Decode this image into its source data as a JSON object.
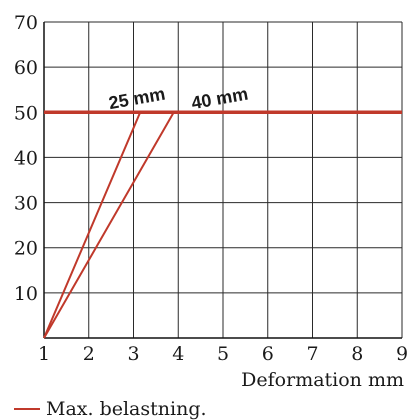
{
  "chart_data": {
    "type": "line",
    "title": "",
    "xlabel": "Deformation mm",
    "ylabel": "",
    "xlim": [
      1,
      9
    ],
    "ylim": [
      0,
      70
    ],
    "xticks": [
      "1",
      "2",
      "3",
      "4",
      "5",
      "6",
      "7",
      "8",
      "9"
    ],
    "yticks": [
      "10",
      "20",
      "30",
      "40",
      "50",
      "60",
      "70"
    ],
    "grid": true,
    "series": [
      {
        "name": "",
        "color": "#c0392b",
        "x": [
          1,
          3.15,
          9
        ],
        "y": [
          0,
          50,
          50
        ]
      },
      {
        "name": "",
        "color": "#c0392b",
        "x": [
          1,
          3.9,
          9
        ],
        "y": [
          0,
          50,
          50
        ]
      }
    ],
    "annotations": [
      {
        "text": "25 mm",
        "x": 3.1,
        "y": 50
      },
      {
        "text": "40 mm",
        "x": 4.95,
        "y": 50
      }
    ],
    "legend": {
      "placement": "bottom-left",
      "label": "Max. belastning.",
      "color": "#c0392b"
    }
  }
}
